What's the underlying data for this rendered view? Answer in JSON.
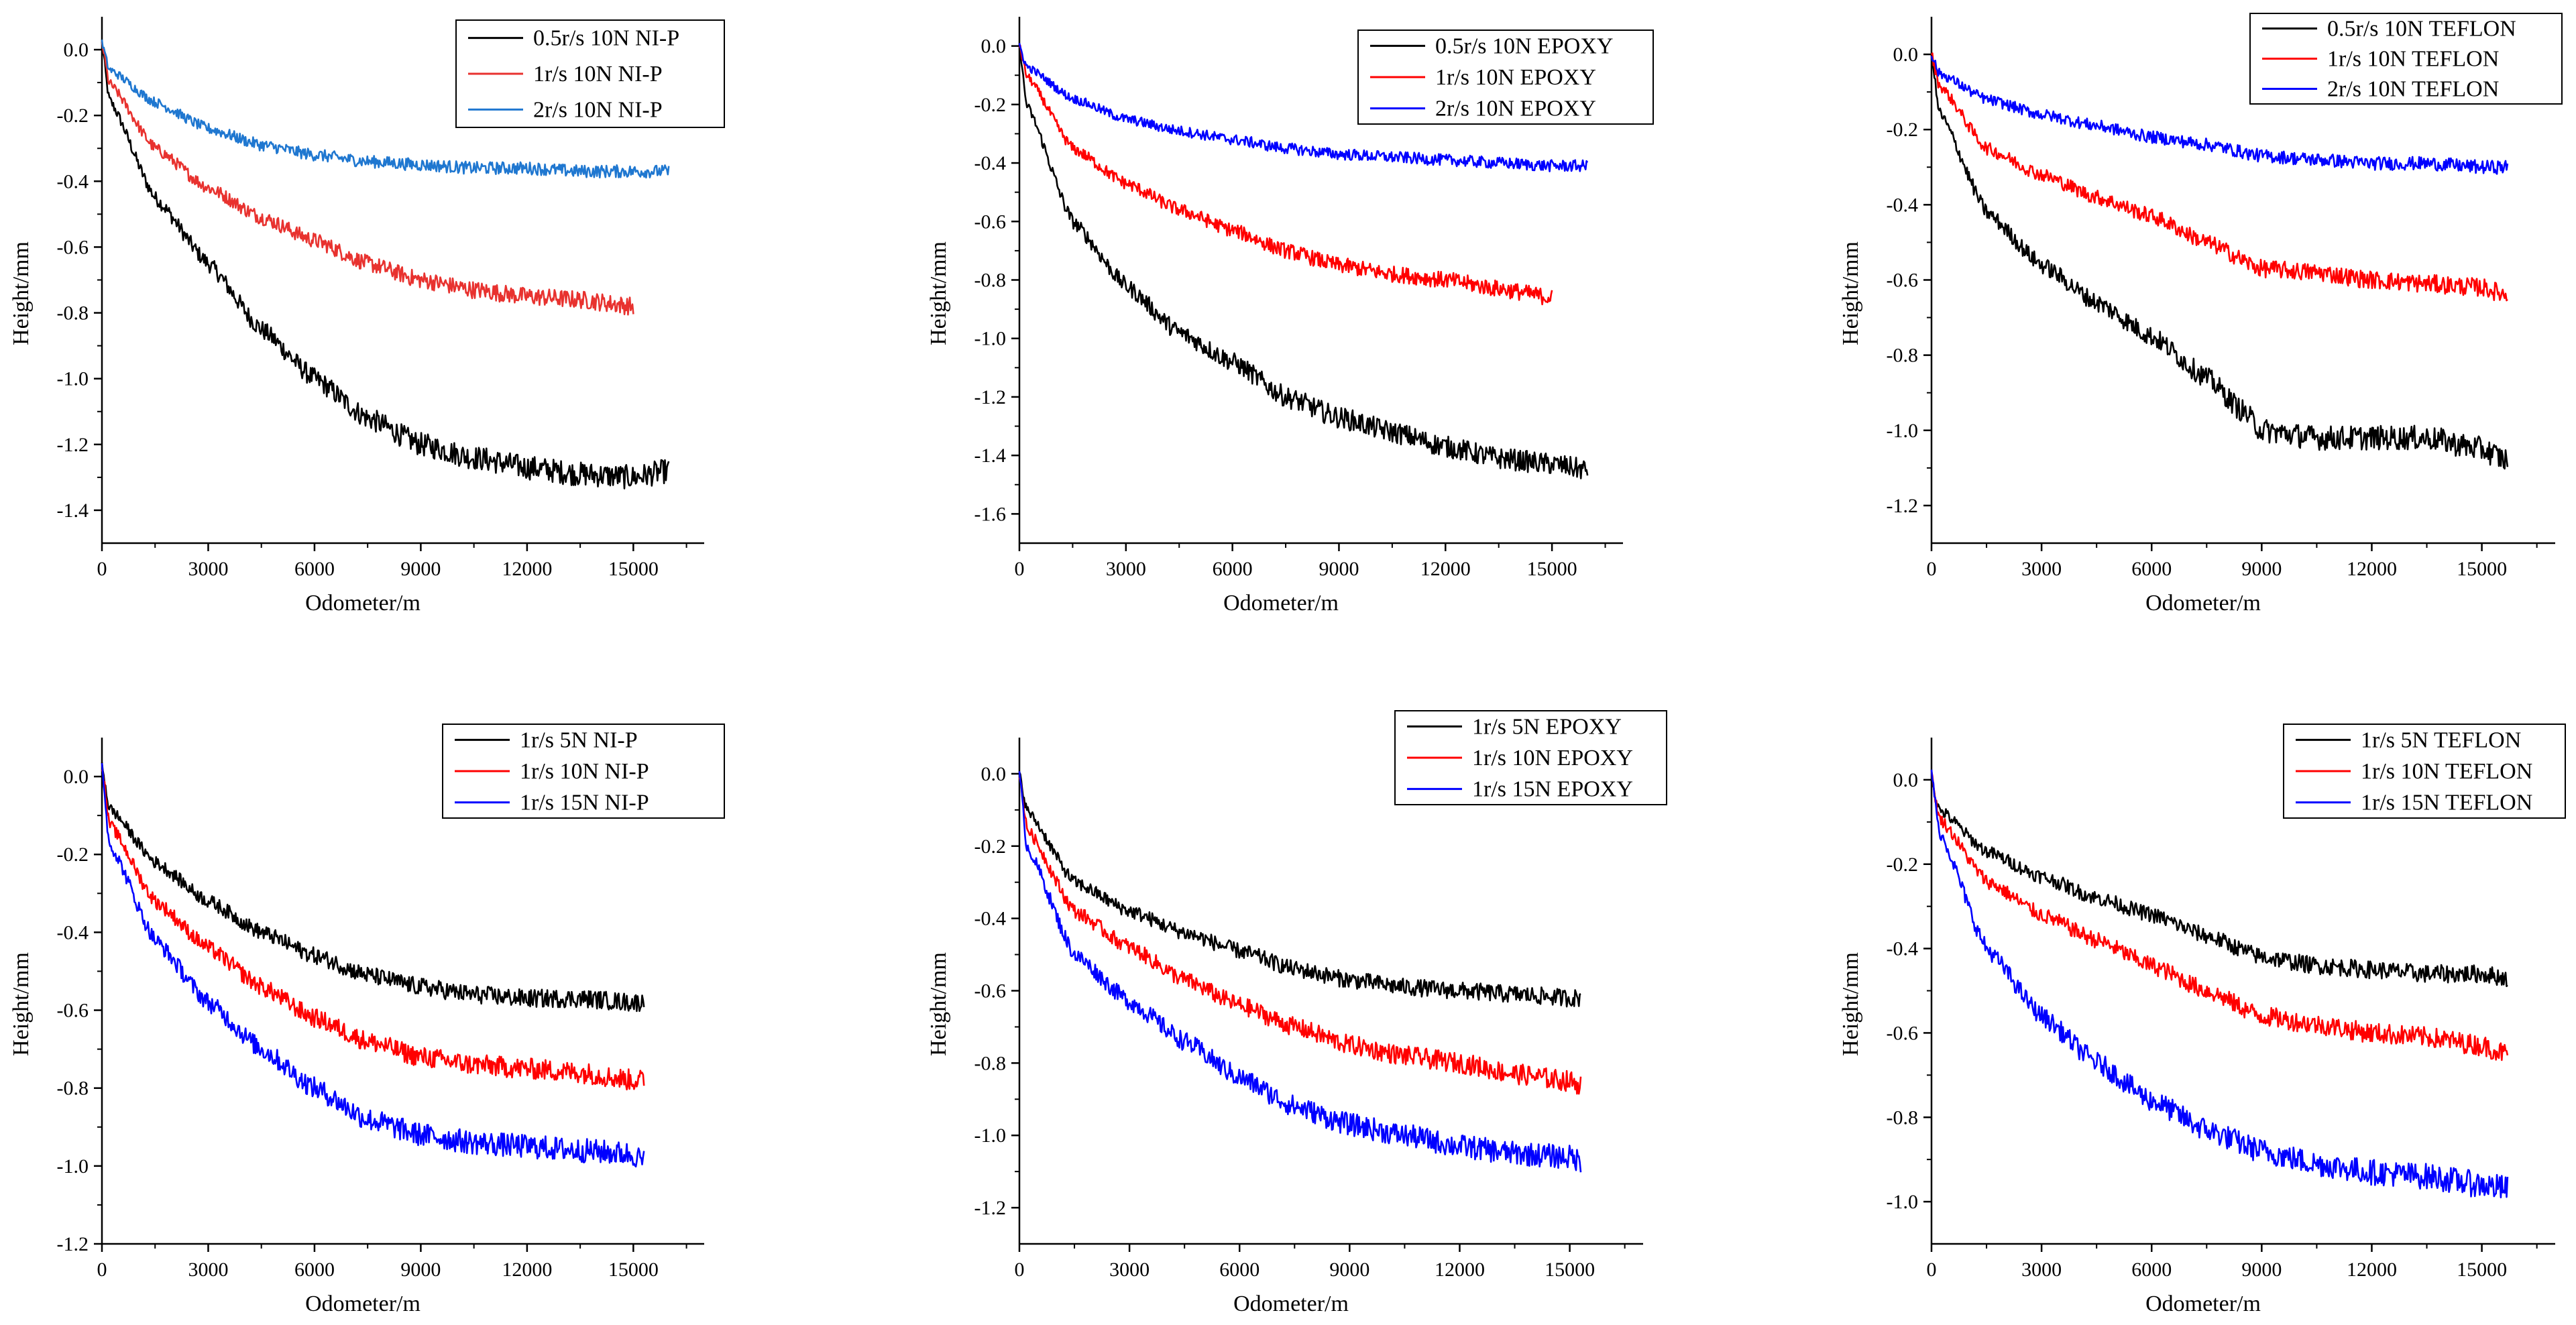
{
  "figure": {
    "type": "multi-panel wear curves"
  },
  "chart_data": [
    {
      "type": "line",
      "xlabel": "Odometer/m",
      "ylabel": "Height/mm",
      "xlim": [
        0,
        17000
      ],
      "ylim": [
        -1.5,
        0.1
      ],
      "xticks": [
        0,
        3000,
        6000,
        9000,
        12000,
        15000
      ],
      "yticks": [
        0.0,
        -0.2,
        -0.4,
        -0.6,
        -0.8,
        -1.0,
        -1.2,
        -1.4
      ],
      "xtick_labels": [
        "0",
        "3000",
        "6000",
        "9000",
        "12000",
        "15000"
      ],
      "ytick_labels": [
        "0.0",
        "-0.2",
        "-0.4",
        "-0.6",
        "-0.8",
        "-1.0",
        "-1.2",
        "-1.4"
      ],
      "legend": "top-right",
      "series": [
        {
          "name": "0.5r/s 10N NI-P",
          "color": "#000000",
          "x": [
            0,
            200,
            1500,
            3000,
            4500,
            6000,
            7500,
            9000,
            10500,
            12000,
            13500,
            15000,
            16000
          ],
          "y": [
            0.02,
            -0.15,
            -0.45,
            -0.65,
            -0.85,
            -1.0,
            -1.12,
            -1.2,
            -1.24,
            -1.27,
            -1.29,
            -1.3,
            -1.28
          ]
        },
        {
          "name": "1r/s 10N NI-P",
          "color": "#e8322f",
          "x": [
            0,
            200,
            1500,
            3000,
            4500,
            6000,
            7500,
            9000,
            10500,
            12000,
            13500,
            15000
          ],
          "y": [
            0.02,
            -0.1,
            -0.3,
            -0.42,
            -0.51,
            -0.58,
            -0.65,
            -0.7,
            -0.73,
            -0.75,
            -0.76,
            -0.78
          ]
        },
        {
          "name": "2r/s 10N NI-P",
          "color": "#1f77d0",
          "x": [
            0,
            200,
            1500,
            3000,
            4500,
            6000,
            7500,
            9000,
            10500,
            12000,
            13500,
            15000,
            16000
          ],
          "y": [
            0.02,
            -0.06,
            -0.16,
            -0.24,
            -0.29,
            -0.32,
            -0.34,
            -0.35,
            -0.36,
            -0.36,
            -0.37,
            -0.37,
            -0.37
          ]
        }
      ]
    },
    {
      "type": "line",
      "xlabel": "Odometer/m",
      "ylabel": "Height/mm",
      "xlim": [
        0,
        17000
      ],
      "ylim": [
        -1.7,
        0.1
      ],
      "xticks": [
        0,
        3000,
        6000,
        9000,
        12000,
        15000
      ],
      "yticks": [
        0.0,
        -0.2,
        -0.4,
        -0.6,
        -0.8,
        -1.0,
        -1.2,
        -1.4,
        -1.6
      ],
      "xtick_labels": [
        "0",
        "3000",
        "6000",
        "9000",
        "12000",
        "15000"
      ],
      "ytick_labels": [
        "0.0",
        "-0.2",
        "-0.4",
        "-0.6",
        "-0.8",
        "-1.0",
        "-1.2",
        "-1.4",
        "-1.6"
      ],
      "legend": "top-right",
      "series": [
        {
          "name": "0.5r/s 10N EPOXY",
          "color": "#000000",
          "x": [
            0,
            200,
            1500,
            3000,
            4500,
            6000,
            7500,
            9000,
            10500,
            12000,
            13500,
            15000,
            16000
          ],
          "y": [
            0.0,
            -0.2,
            -0.6,
            -0.82,
            -0.98,
            -1.08,
            -1.2,
            -1.27,
            -1.32,
            -1.37,
            -1.41,
            -1.43,
            -1.45
          ]
        },
        {
          "name": "1r/s 10N EPOXY",
          "color": "#ff0000",
          "x": [
            0,
            200,
            1500,
            3000,
            4500,
            6000,
            7500,
            9000,
            10500,
            12000,
            13500,
            15000
          ],
          "y": [
            0.0,
            -0.1,
            -0.35,
            -0.47,
            -0.56,
            -0.63,
            -0.7,
            -0.75,
            -0.78,
            -0.8,
            -0.83,
            -0.86
          ]
        },
        {
          "name": "2r/s 10N EPOXY",
          "color": "#0000ff",
          "x": [
            0,
            200,
            1500,
            3000,
            4500,
            6000,
            7500,
            9000,
            10500,
            12000,
            13500,
            15000,
            16000
          ],
          "y": [
            0.0,
            -0.07,
            -0.18,
            -0.25,
            -0.29,
            -0.32,
            -0.35,
            -0.37,
            -0.38,
            -0.39,
            -0.4,
            -0.41,
            -0.41
          ]
        }
      ]
    },
    {
      "type": "line",
      "xlabel": "Odometer/m",
      "ylabel": "Height/mm",
      "xlim": [
        0,
        17000
      ],
      "ylim": [
        -1.3,
        0.1
      ],
      "xticks": [
        0,
        3000,
        6000,
        9000,
        12000,
        15000
      ],
      "yticks": [
        0.0,
        -0.2,
        -0.4,
        -0.6,
        -0.8,
        -1.0,
        -1.2
      ],
      "xtick_labels": [
        "0",
        "3000",
        "6000",
        "9000",
        "12000",
        "15000"
      ],
      "ytick_labels": [
        "0.0",
        "-0.2",
        "-0.4",
        "-0.6",
        "-0.8",
        "-1.0",
        "-1.2"
      ],
      "legend": "top-right",
      "series": [
        {
          "name": "0.5r/s 10N TEFLON",
          "color": "#000000",
          "x": [
            0,
            200,
            1500,
            3000,
            4500,
            6000,
            7500,
            8500,
            9000,
            10500,
            12000,
            13500,
            15000,
            15700
          ],
          "y": [
            0.0,
            -0.15,
            -0.42,
            -0.56,
            -0.66,
            -0.75,
            -0.86,
            -0.95,
            -1.0,
            -1.02,
            -1.02,
            -1.02,
            -1.05,
            -1.08
          ]
        },
        {
          "name": "1r/s 10N TEFLON",
          "color": "#ff0000",
          "x": [
            0,
            200,
            1500,
            3000,
            4500,
            6000,
            7500,
            9000,
            10500,
            12000,
            13500,
            15000,
            15700
          ],
          "y": [
            0.0,
            -0.08,
            -0.25,
            -0.32,
            -0.38,
            -0.43,
            -0.5,
            -0.57,
            -0.58,
            -0.6,
            -0.61,
            -0.62,
            -0.64
          ]
        },
        {
          "name": "2r/s 10N TEFLON",
          "color": "#0000ff",
          "x": [
            0,
            200,
            1500,
            3000,
            4500,
            6000,
            7500,
            9000,
            10500,
            12000,
            13500,
            15000,
            15700
          ],
          "y": [
            0.0,
            -0.05,
            -0.12,
            -0.16,
            -0.19,
            -0.22,
            -0.24,
            -0.27,
            -0.28,
            -0.29,
            -0.29,
            -0.3,
            -0.3
          ]
        }
      ]
    },
    {
      "type": "line",
      "xlabel": "Odometer/m",
      "ylabel": "Height/mm",
      "xlim": [
        0,
        17000
      ],
      "ylim": [
        -1.2,
        0.1
      ],
      "xticks": [
        0,
        3000,
        6000,
        9000,
        12000,
        15000
      ],
      "yticks": [
        0.0,
        -0.2,
        -0.4,
        -0.6,
        -0.8,
        -1.0,
        -1.2
      ],
      "xtick_labels": [
        "0",
        "3000",
        "6000",
        "9000",
        "12000",
        "15000"
      ],
      "ytick_labels": [
        "0.0",
        "-0.2",
        "-0.4",
        "-0.6",
        "-0.8",
        "-1.0",
        "-1.2"
      ],
      "legend": "top-right",
      "series": [
        {
          "name": "1r/s 5N NI-P",
          "color": "#000000",
          "x": [
            0,
            200,
            1500,
            3000,
            4500,
            6000,
            7500,
            9000,
            10500,
            12000,
            13500,
            15000,
            15300
          ],
          "y": [
            0.03,
            -0.08,
            -0.22,
            -0.32,
            -0.4,
            -0.46,
            -0.51,
            -0.54,
            -0.56,
            -0.57,
            -0.57,
            -0.58,
            -0.58
          ]
        },
        {
          "name": "1r/s 10N NI-P",
          "color": "#ff0000",
          "x": [
            0,
            200,
            1500,
            3000,
            4500,
            6000,
            7500,
            9000,
            10500,
            12000,
            13500,
            15000,
            15300
          ],
          "y": [
            0.03,
            -0.12,
            -0.32,
            -0.44,
            -0.54,
            -0.62,
            -0.68,
            -0.72,
            -0.74,
            -0.75,
            -0.76,
            -0.78,
            -0.78
          ]
        },
        {
          "name": "1r/s 15N NI-P",
          "color": "#0000ff",
          "x": [
            0,
            200,
            1500,
            3000,
            4500,
            6000,
            7500,
            9000,
            10500,
            12000,
            13500,
            15000,
            15300
          ],
          "y": [
            0.03,
            -0.17,
            -0.42,
            -0.58,
            -0.7,
            -0.8,
            -0.88,
            -0.92,
            -0.94,
            -0.95,
            -0.96,
            -0.97,
            -0.99
          ]
        }
      ]
    },
    {
      "type": "line",
      "xlabel": "Odometer/m",
      "ylabel": "Height/mm",
      "xlim": [
        0,
        17000
      ],
      "ylim": [
        -1.3,
        0.1
      ],
      "xticks": [
        0,
        3000,
        6000,
        9000,
        12000,
        15000
      ],
      "yticks": [
        0.0,
        -0.2,
        -0.4,
        -0.6,
        -0.8,
        -1.0,
        -1.2
      ],
      "xtick_labels": [
        "0",
        "3000",
        "6000",
        "9000",
        "12000",
        "15000"
      ],
      "ytick_labels": [
        "0.0",
        "-0.2",
        "-0.4",
        "-0.6",
        "-0.8",
        "-1.0",
        "-1.2"
      ],
      "legend": "top-right",
      "series": [
        {
          "name": "1r/s 5N EPOXY",
          "color": "#000000",
          "x": [
            0,
            200,
            1500,
            3000,
            4500,
            6000,
            7500,
            9000,
            10500,
            12000,
            13500,
            15000,
            15300
          ],
          "y": [
            0.0,
            -0.1,
            -0.3,
            -0.38,
            -0.44,
            -0.49,
            -0.54,
            -0.57,
            -0.59,
            -0.6,
            -0.61,
            -0.62,
            -0.62
          ]
        },
        {
          "name": "1r/s 10N EPOXY",
          "color": "#ff0000",
          "x": [
            0,
            200,
            1500,
            3000,
            4500,
            6000,
            7500,
            9000,
            10500,
            12000,
            13500,
            15000,
            15300
          ],
          "y": [
            0.0,
            -0.15,
            -0.38,
            -0.48,
            -0.57,
            -0.64,
            -0.7,
            -0.75,
            -0.78,
            -0.8,
            -0.83,
            -0.85,
            -0.86
          ]
        },
        {
          "name": "1r/s 15N EPOXY",
          "color": "#0000ff",
          "x": [
            0,
            200,
            1500,
            3000,
            4500,
            6000,
            7500,
            9000,
            10500,
            12000,
            13500,
            15000,
            15300
          ],
          "y": [
            0.0,
            -0.2,
            -0.5,
            -0.63,
            -0.74,
            -0.84,
            -0.92,
            -0.97,
            -1.0,
            -1.03,
            -1.05,
            -1.06,
            -1.07
          ]
        }
      ]
    },
    {
      "type": "line",
      "xlabel": "Odometer/m",
      "ylabel": "Height/mm",
      "xlim": [
        0,
        17000
      ],
      "ylim": [
        -1.1,
        0.1
      ],
      "xticks": [
        0,
        3000,
        6000,
        9000,
        12000,
        15000
      ],
      "yticks": [
        0.0,
        -0.2,
        -0.4,
        -0.6,
        -0.8,
        -1.0
      ],
      "xtick_labels": [
        "0",
        "3000",
        "6000",
        "9000",
        "12000",
        "15000"
      ],
      "ytick_labels": [
        "0.0",
        "-0.2",
        "-0.4",
        "-0.6",
        "-0.8",
        "-1.0"
      ],
      "legend": "top-right",
      "series": [
        {
          "name": "1r/s 5N TEFLON",
          "color": "#000000",
          "x": [
            0,
            200,
            1500,
            3000,
            4500,
            6000,
            7500,
            9000,
            10500,
            12000,
            13500,
            15000,
            15700
          ],
          "y": [
            0.0,
            -0.07,
            -0.17,
            -0.23,
            -0.28,
            -0.32,
            -0.37,
            -0.42,
            -0.44,
            -0.45,
            -0.46,
            -0.46,
            -0.47
          ]
        },
        {
          "name": "1r/s 10N TEFLON",
          "color": "#ff0000",
          "x": [
            0,
            200,
            1500,
            3000,
            4500,
            6000,
            7500,
            9000,
            10500,
            12000,
            13500,
            15000,
            15700
          ],
          "y": [
            0.01,
            -0.09,
            -0.24,
            -0.32,
            -0.38,
            -0.44,
            -0.5,
            -0.56,
            -0.58,
            -0.6,
            -0.61,
            -0.63,
            -0.65
          ]
        },
        {
          "name": "1r/s 15N TEFLON",
          "color": "#0000ff",
          "x": [
            0,
            200,
            1500,
            3000,
            4500,
            6000,
            7500,
            9000,
            10500,
            12000,
            13500,
            15000,
            15700
          ],
          "y": [
            0.02,
            -0.12,
            -0.4,
            -0.56,
            -0.67,
            -0.76,
            -0.83,
            -0.88,
            -0.91,
            -0.93,
            -0.94,
            -0.96,
            -0.97
          ]
        }
      ]
    }
  ]
}
